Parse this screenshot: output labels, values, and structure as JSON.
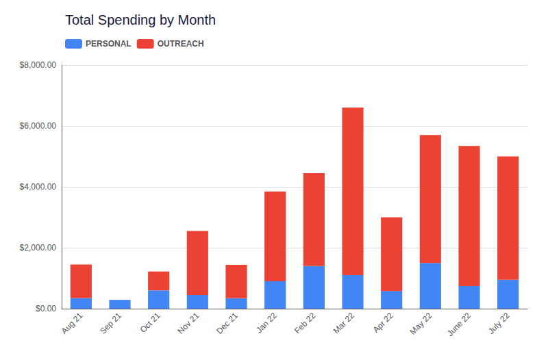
{
  "chart_data": {
    "type": "bar",
    "title": "Total Spending by Month",
    "categories": [
      "Aug 21",
      "Sep 21",
      "Oct 21",
      "Nov 21",
      "Dec 21",
      "Jan 22",
      "Feb 22",
      "Mar 22",
      "Apr 22",
      "May 22",
      "June 22",
      "July 22"
    ],
    "series": [
      {
        "name": "PERSONAL",
        "color": "#4285f4",
        "values": [
          350,
          290,
          600,
          450,
          340,
          900,
          1400,
          1100,
          580,
          1500,
          740,
          950
        ]
      },
      {
        "name": "OUTREACH",
        "color": "#ea4335",
        "values": [
          1100,
          0,
          620,
          2100,
          1100,
          2950,
          3050,
          5500,
          2420,
          4200,
          4600,
          4050
        ]
      }
    ],
    "stacked": true,
    "ylim": [
      0,
      8000
    ],
    "yticks": [
      {
        "value": 0,
        "label": "$0.00"
      },
      {
        "value": 2000,
        "label": "$2,000.00"
      },
      {
        "value": 4000,
        "label": "$4,000.00"
      },
      {
        "value": 6000,
        "label": "$6,000.00"
      },
      {
        "value": 8000,
        "label": "$8,000.00"
      }
    ],
    "grid": true,
    "legend": "upper left"
  }
}
